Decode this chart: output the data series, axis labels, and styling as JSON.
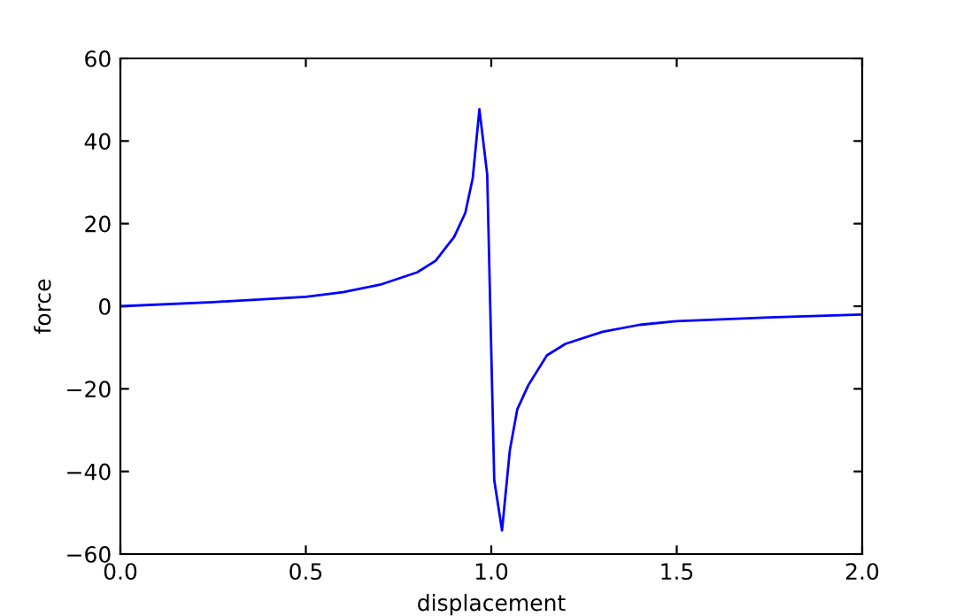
{
  "chart_data": {
    "type": "line",
    "xlabel": "displacement",
    "ylabel": "force",
    "x": [
      0,
      0.25,
      0.5,
      0.6,
      0.7,
      0.8,
      0.85,
      0.9,
      0.93,
      0.95,
      0.968,
      0.989,
      1.008,
      1.029,
      1.05,
      1.07,
      1.1,
      1.15,
      1.2,
      1.3,
      1.4,
      1.5,
      1.75,
      2.0
    ],
    "series": [
      {
        "color": "#0000ff",
        "values": [
          0,
          1.0,
          2.3,
          3.4,
          5.2,
          8.2,
          11,
          16.8,
          22.6,
          31,
          47.7,
          31.9,
          -42.1,
          -54.3,
          -34.9,
          -25,
          -19.1,
          -11.9,
          -9.1,
          -6.2,
          -4.5,
          -3.6,
          -2.7,
          -2.0
        ]
      }
    ],
    "xlim": [
      0,
      2
    ],
    "xticks": [
      {
        "value": 0,
        "label": "0.0"
      },
      0.5,
      {
        "value": 1,
        "label": "1.0"
      },
      1.5,
      {
        "value": 2,
        "label": "2.0"
      }
    ],
    "ylim": [
      -60,
      60
    ],
    "yticks": [
      -60,
      -40,
      -20,
      0,
      20,
      40,
      60
    ],
    "grid": false,
    "legend": false
  }
}
